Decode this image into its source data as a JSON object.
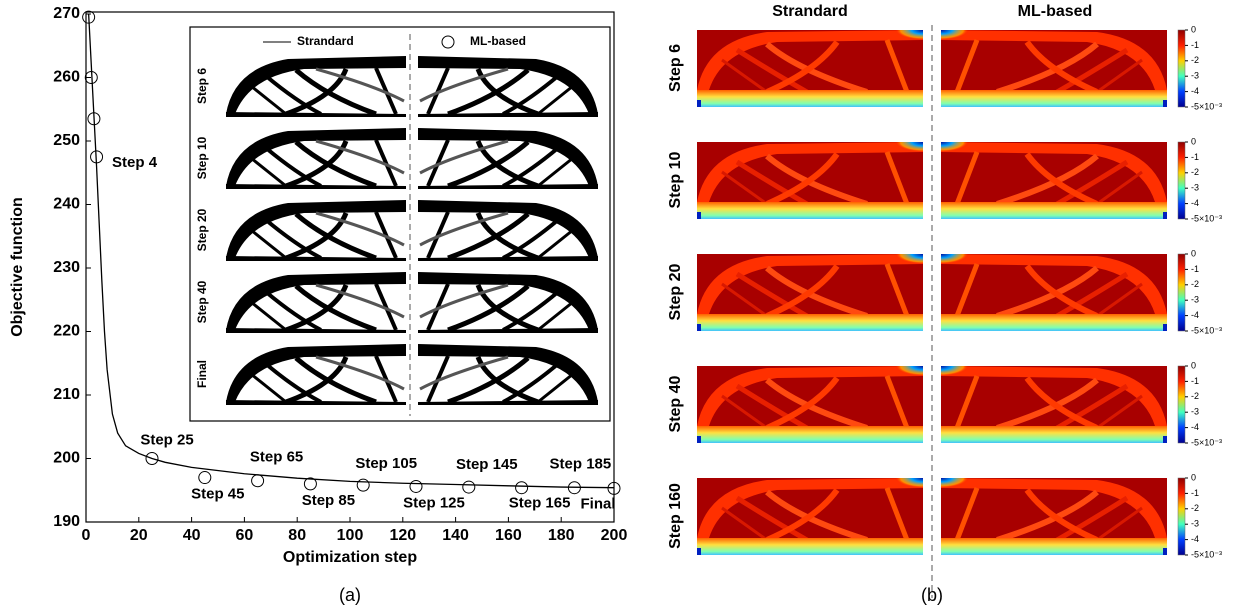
{
  "chart_data": {
    "type": "line",
    "xlabel": "Optimization step",
    "ylabel": "Objective function",
    "xlim": [
      0,
      200
    ],
    "ylim": [
      190,
      270
    ],
    "xticks": [
      0,
      20,
      40,
      60,
      80,
      100,
      120,
      140,
      160,
      180,
      200
    ],
    "yticks": [
      190,
      200,
      210,
      220,
      230,
      240,
      250,
      260,
      270
    ],
    "series": [
      {
        "name": "Strandard",
        "type": "line",
        "color": "#000000",
        "x": [
          1,
          2,
          3,
          4,
          5,
          6,
          7,
          8,
          10,
          12,
          15,
          20,
          25,
          30,
          40,
          60,
          80,
          100,
          120,
          140,
          160,
          180,
          200
        ],
        "values": [
          270,
          262,
          254,
          246,
          237,
          228,
          220,
          214,
          207,
          204,
          202,
          200.8,
          200,
          199.4,
          198.6,
          197.6,
          196.9,
          196.4,
          196.1,
          195.9,
          195.7,
          195.5,
          195.4
        ]
      },
      {
        "name": "ML-based",
        "type": "scatter",
        "color": "#000000",
        "x": [
          1,
          2,
          3,
          4,
          25,
          45,
          65,
          85,
          105,
          125,
          145,
          165,
          185,
          200
        ],
        "values": [
          269.5,
          260,
          253.5,
          247.5,
          200,
          197,
          196.5,
          196,
          195.8,
          195.6,
          195.5,
          195.4,
          195.4,
          195.3
        ]
      }
    ],
    "annotations": [
      "Step 4",
      "Step 25",
      "Step 45",
      "Step 65",
      "Step 85",
      "Step 105",
      "Step 125",
      "Step 145",
      "Step 165",
      "Step 185",
      "Final"
    ],
    "inset": {
      "row_labels": [
        "Step 6",
        "Step 10",
        "Step 20",
        "Step 40",
        "Final"
      ]
    }
  },
  "panel_b": {
    "column_titles": [
      "Strandard",
      "ML-based"
    ],
    "row_labels": [
      "Step 6",
      "Step 10",
      "Step 20",
      "Step 40",
      "Step 160"
    ],
    "colorbar": {
      "lim": [
        -5,
        0
      ],
      "ticks": [
        0,
        -1,
        -2,
        -3,
        -4,
        {
          "value": -5,
          "label": "-5×10⁻³"
        }
      ]
    }
  },
  "captions": [
    "(a)",
    "(b)"
  ]
}
